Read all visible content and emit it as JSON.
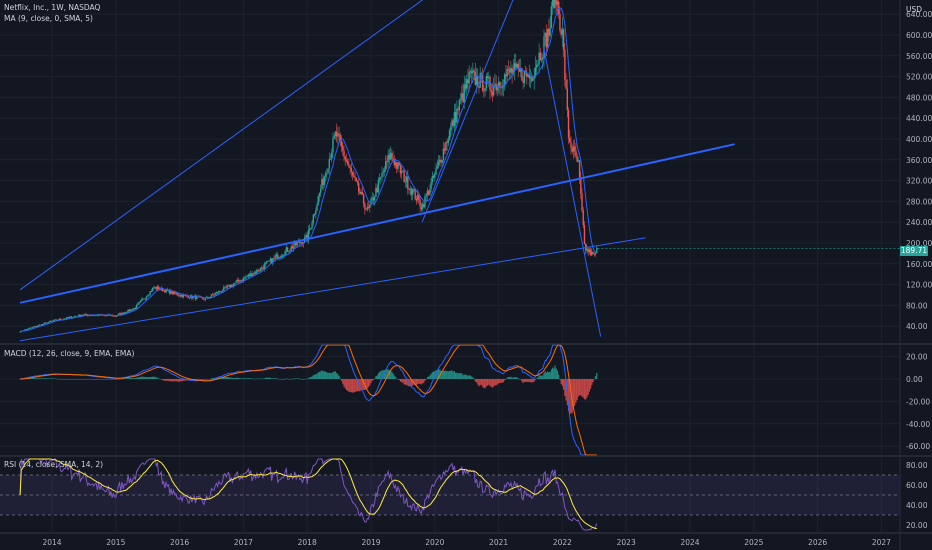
{
  "header": {
    "symbol_line": "Netflix, Inc., 1W, NASDAQ",
    "indicator_ma": "MA (9, close, 0, SMA, 5)",
    "currency": "USD"
  },
  "macd_title": "MACD (12, 26, close, 9, EMA, EMA)",
  "rsi_title": "RSI (14, close, SMA, 14, 2)",
  "price_label": "189.71",
  "colors": {
    "background": "#131722",
    "up": "#26a69a",
    "down": "#ef5350",
    "trendline": "#2962ff",
    "ma": "#2962ff",
    "macd_line": "#2962ff",
    "signal_line": "#ff6d00",
    "rsi_line": "#7e57c2",
    "rsi_ma": "#ffeb3b"
  },
  "chart_data": [
    {
      "type": "candlestick",
      "title": "Netflix, Inc., 1W, NASDAQ",
      "x_ticks": [
        "2014",
        "2015",
        "2016",
        "2017",
        "2018",
        "2019",
        "2020",
        "2021",
        "2022",
        "2023",
        "2024",
        "2025",
        "2026",
        "2027"
      ],
      "y_ticks": [
        40,
        80,
        120,
        160,
        200,
        240,
        280,
        320,
        360,
        400,
        440,
        480,
        520,
        560,
        600,
        640
      ],
      "ylim": [
        20,
        660
      ],
      "last_price": 189.71,
      "approx_closes": [
        {
          "x": 2013.5,
          "y": 30
        },
        {
          "x": 2014.0,
          "y": 50
        },
        {
          "x": 2014.5,
          "y": 62
        },
        {
          "x": 2015.0,
          "y": 60
        },
        {
          "x": 2015.3,
          "y": 75
        },
        {
          "x": 2015.6,
          "y": 115
        },
        {
          "x": 2016.0,
          "y": 100
        },
        {
          "x": 2016.4,
          "y": 92
        },
        {
          "x": 2016.8,
          "y": 118
        },
        {
          "x": 2017.2,
          "y": 145
        },
        {
          "x": 2017.6,
          "y": 180
        },
        {
          "x": 2018.0,
          "y": 210
        },
        {
          "x": 2018.45,
          "y": 410
        },
        {
          "x": 2018.7,
          "y": 330
        },
        {
          "x": 2018.95,
          "y": 260
        },
        {
          "x": 2019.3,
          "y": 370
        },
        {
          "x": 2019.6,
          "y": 310
        },
        {
          "x": 2019.8,
          "y": 270
        },
        {
          "x": 2020.0,
          "y": 330
        },
        {
          "x": 2020.25,
          "y": 420
        },
        {
          "x": 2020.55,
          "y": 520
        },
        {
          "x": 2020.9,
          "y": 500
        },
        {
          "x": 2021.2,
          "y": 530
        },
        {
          "x": 2021.5,
          "y": 520
        },
        {
          "x": 2021.8,
          "y": 610
        },
        {
          "x": 2021.88,
          "y": 690
        },
        {
          "x": 2022.0,
          "y": 600
        },
        {
          "x": 2022.1,
          "y": 400
        },
        {
          "x": 2022.25,
          "y": 350
        },
        {
          "x": 2022.35,
          "y": 190
        },
        {
          "x": 2022.5,
          "y": 175
        },
        {
          "x": 2022.55,
          "y": 189.71
        }
      ]
    },
    {
      "type": "line",
      "title": "MACD (12, 26, close, 9, EMA, EMA)",
      "y_ticks": [
        20,
        0,
        -20,
        -40,
        -60
      ],
      "ylim": [
        -70,
        30
      ]
    },
    {
      "type": "line",
      "title": "RSI (14, close, SMA, 14, 2)",
      "y_ticks": [
        80,
        60,
        40,
        20
      ],
      "ylim": [
        10,
        90
      ],
      "bands": [
        30,
        50,
        70
      ]
    }
  ]
}
